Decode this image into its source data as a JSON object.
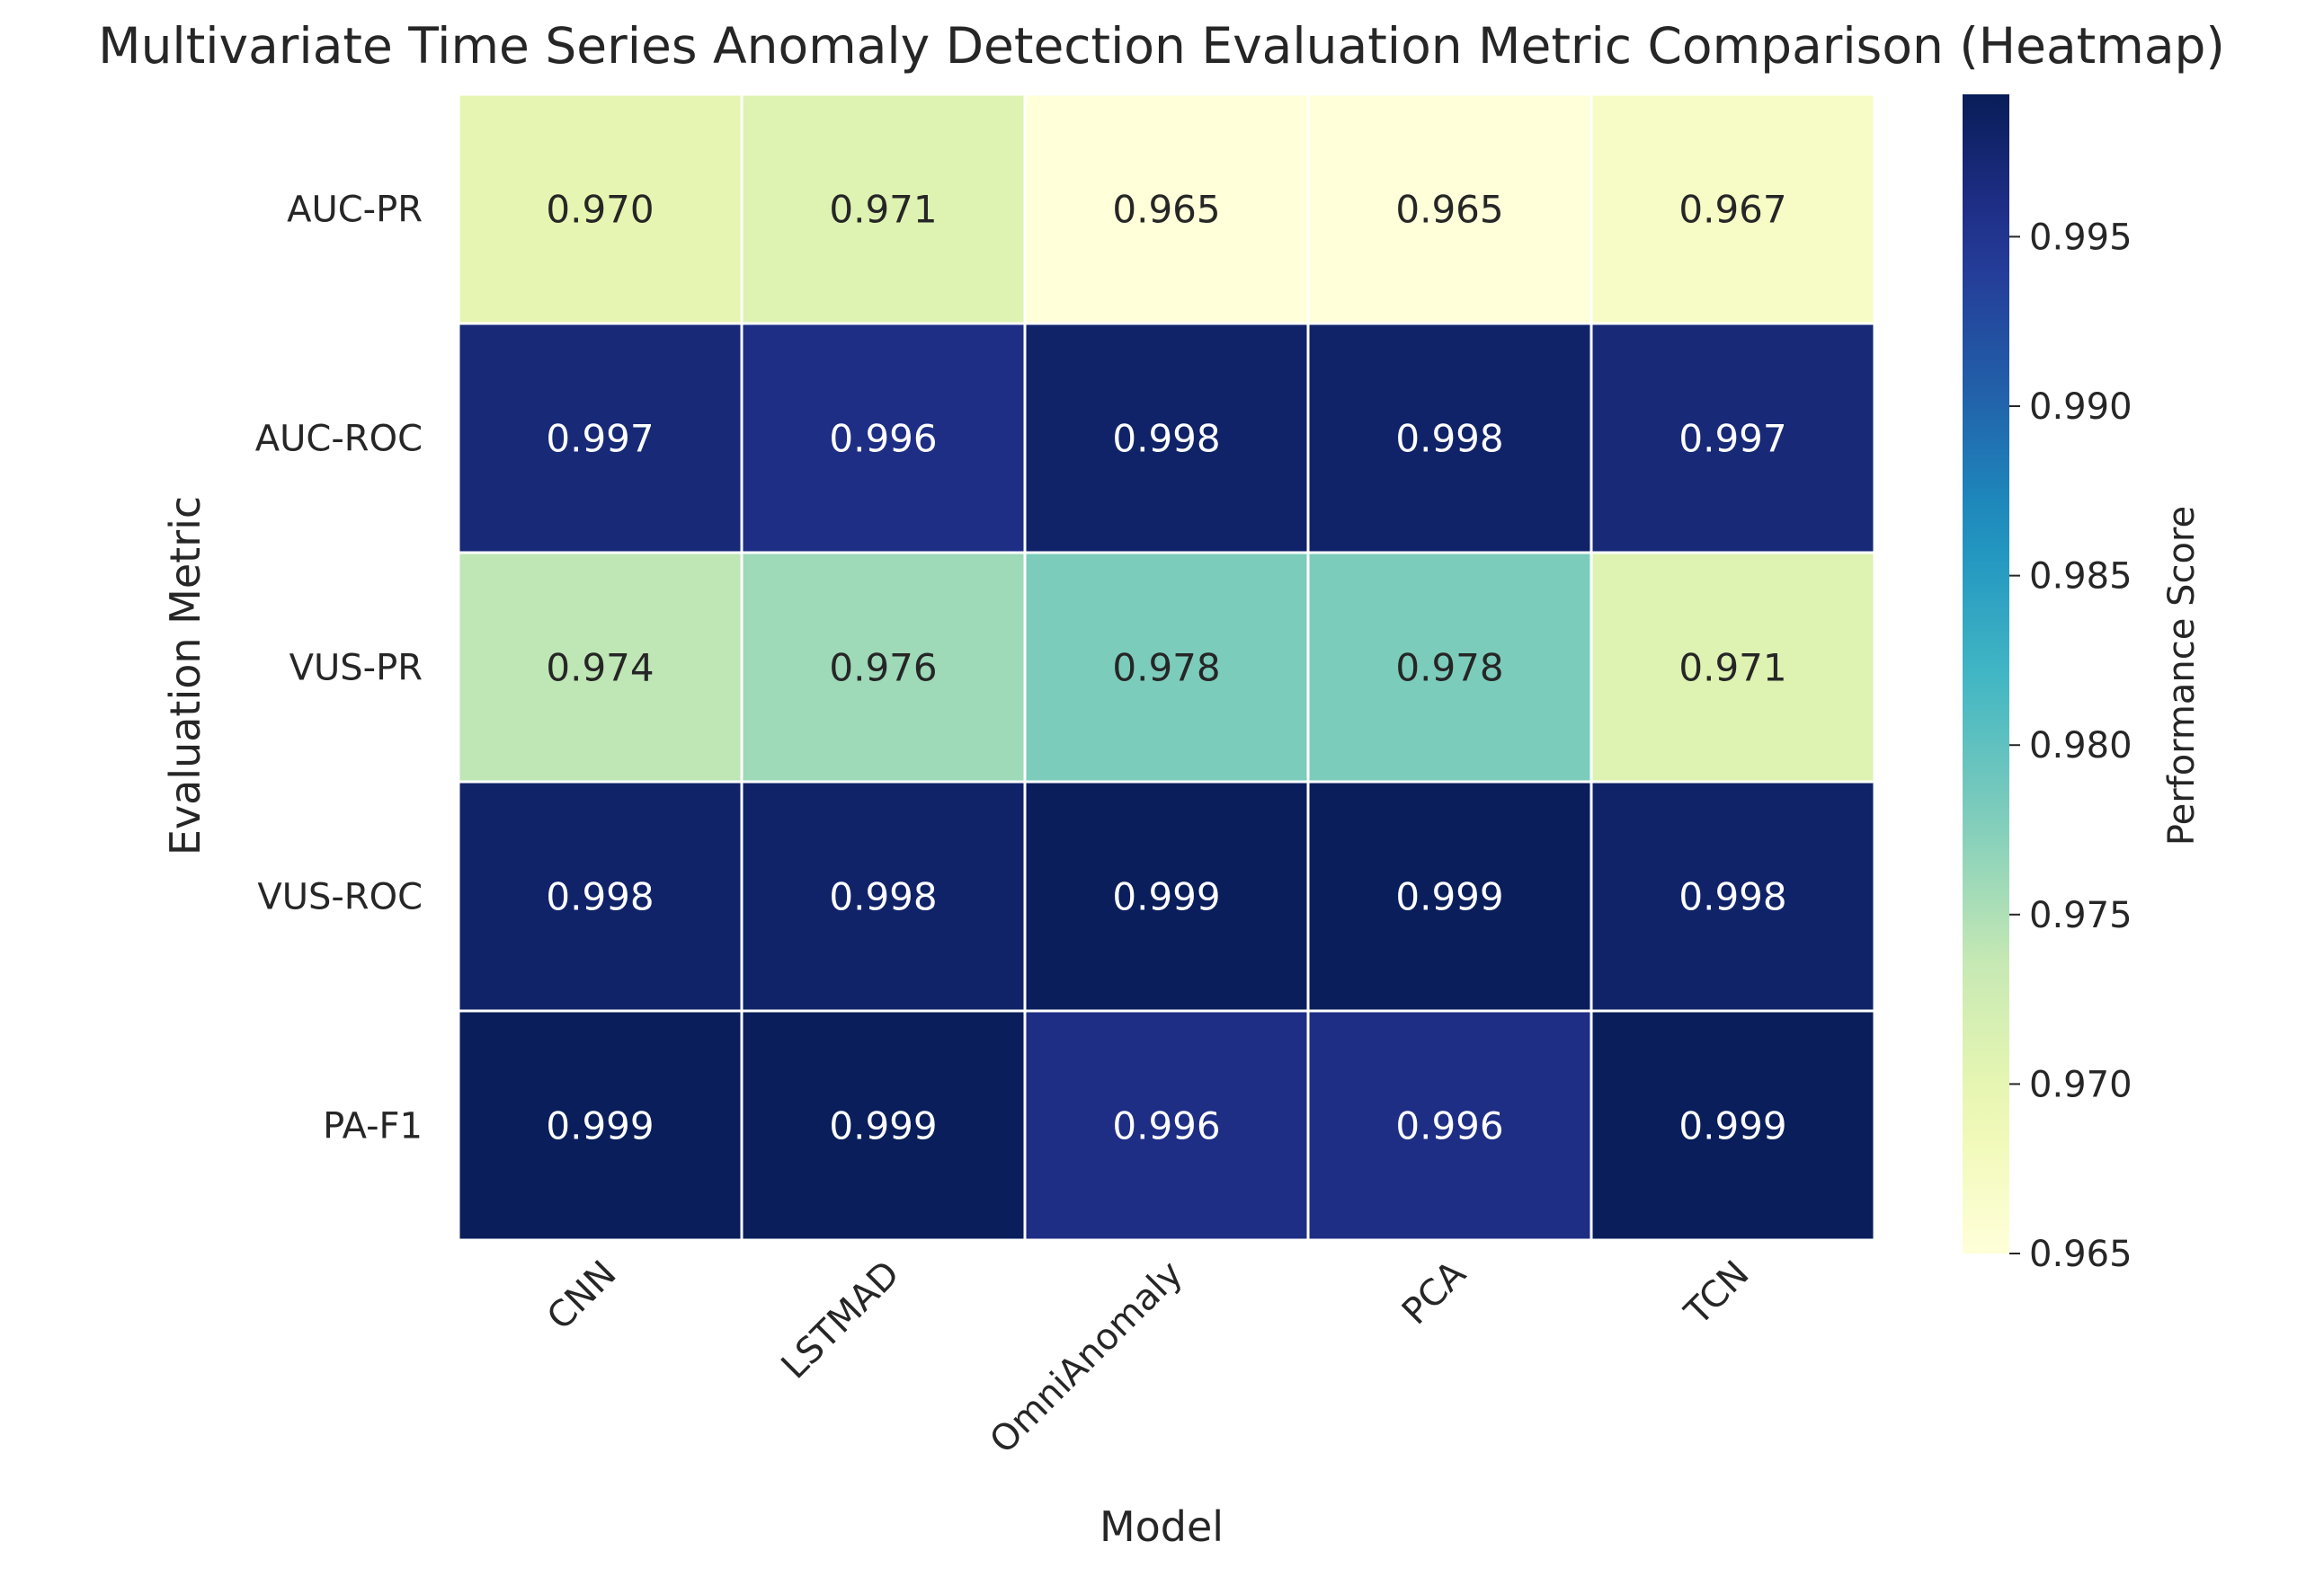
{
  "chart_data": {
    "type": "heatmap",
    "title": "Multivariate Time Series Anomaly Detection Evaluation Metric Comparison (Heatmap)",
    "xlabel": "Model",
    "ylabel": "Evaluation Metric",
    "x_categories": [
      "CNN",
      "LSTMAD",
      "OmniAnomaly",
      "PCA",
      "TCN"
    ],
    "y_categories": [
      "AUC-PR",
      "AUC-ROC",
      "VUS-PR",
      "VUS-ROC",
      "PA-F1"
    ],
    "values": [
      [
        0.97,
        0.971,
        0.965,
        0.965,
        0.967
      ],
      [
        0.997,
        0.996,
        0.998,
        0.998,
        0.997
      ],
      [
        0.974,
        0.976,
        0.978,
        0.978,
        0.971
      ],
      [
        0.998,
        0.998,
        0.999,
        0.999,
        0.998
      ],
      [
        0.999,
        0.999,
        0.996,
        0.996,
        0.999
      ]
    ],
    "value_format": "0.000",
    "colormap": "YlGnBu",
    "colorbar": {
      "label": "Performance Score",
      "range": [
        0.965,
        0.9992
      ],
      "ticks": [
        0.965,
        0.97,
        0.975,
        0.98,
        0.985,
        0.99,
        0.995
      ]
    },
    "grid": false
  }
}
